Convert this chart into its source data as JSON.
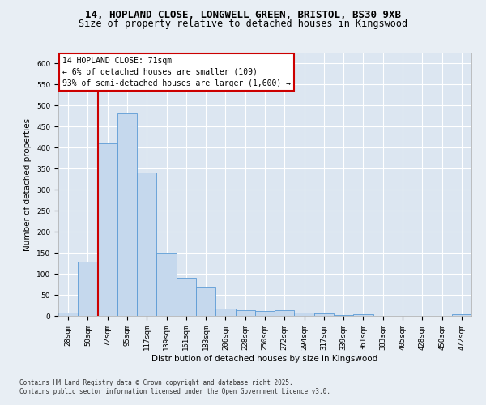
{
  "title_line1": "14, HOPLAND CLOSE, LONGWELL GREEN, BRISTOL, BS30 9XB",
  "title_line2": "Size of property relative to detached houses in Kingswood",
  "xlabel": "Distribution of detached houses by size in Kingswood",
  "ylabel": "Number of detached properties",
  "bar_color": "#c5d8ed",
  "bar_edge_color": "#5b9bd5",
  "annotation_box_color": "#ffffff",
  "annotation_box_edge": "#cc0000",
  "vline_color": "#cc0000",
  "annotation_text_line1": "14 HOPLAND CLOSE: 71sqm",
  "annotation_text_line2": "← 6% of detached houses are smaller (109)",
  "annotation_text_line3": "93% of semi-detached houses are larger (1,600) →",
  "footer_text": "Contains HM Land Registry data © Crown copyright and database right 2025.\nContains public sector information licensed under the Open Government Licence v3.0.",
  "categories": [
    "28sqm",
    "50sqm",
    "72sqm",
    "95sqm",
    "117sqm",
    "139sqm",
    "161sqm",
    "183sqm",
    "206sqm",
    "228sqm",
    "250sqm",
    "272sqm",
    "294sqm",
    "317sqm",
    "339sqm",
    "361sqm",
    "383sqm",
    "405sqm",
    "428sqm",
    "450sqm",
    "472sqm"
  ],
  "values": [
    8,
    128,
    410,
    480,
    340,
    150,
    90,
    70,
    17,
    14,
    12,
    13,
    7,
    5,
    1,
    3,
    0,
    0,
    0,
    0,
    3
  ],
  "ylim": [
    0,
    625
  ],
  "yticks": [
    0,
    50,
    100,
    150,
    200,
    250,
    300,
    350,
    400,
    450,
    500,
    550,
    600
  ],
  "bg_color": "#e8eef4",
  "plot_bg_color": "#dce6f1",
  "grid_color": "#ffffff",
  "title_fontsize": 9,
  "subtitle_fontsize": 8.5,
  "axis_label_fontsize": 7.5,
  "tick_fontsize": 6.5,
  "annotation_fontsize": 7,
  "footer_fontsize": 5.5
}
